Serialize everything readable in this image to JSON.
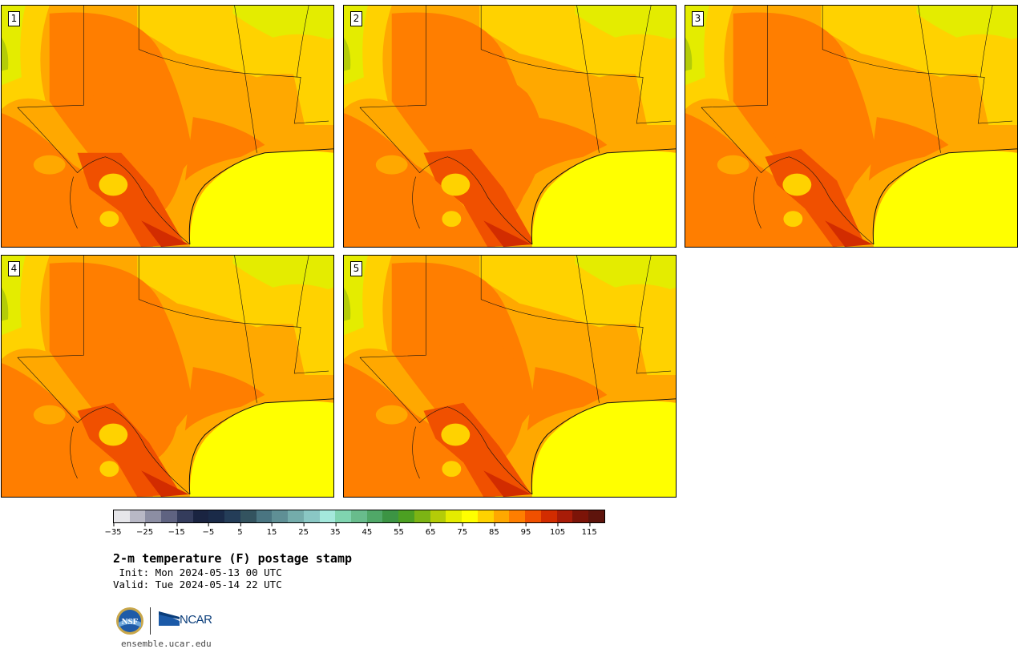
{
  "panels": [
    {
      "label": "1"
    },
    {
      "label": "2"
    },
    {
      "label": "3"
    },
    {
      "label": "4"
    },
    {
      "label": "5"
    }
  ],
  "colorbar": {
    "ticks": [
      "−35",
      "−25",
      "−15",
      "−5",
      "5",
      "15",
      "25",
      "35",
      "45",
      "55",
      "65",
      "75",
      "85",
      "95",
      "105",
      "115"
    ],
    "colors": [
      "#e6e6ea",
      "#b8b8c5",
      "#8c8ea3",
      "#5f6381",
      "#343c5c",
      "#1a2441",
      "#1a2a48",
      "#243d58",
      "#33535f",
      "#4a7581",
      "#5f8f95",
      "#74acab",
      "#8ac7c4",
      "#a4e8dc",
      "#80d4b0",
      "#68bc8c",
      "#50a868",
      "#3c9444",
      "#4ca022",
      "#7cb414",
      "#b4cc08",
      "#e4ec00",
      "#ffff00",
      "#ffd200",
      "#ffa800",
      "#ff7e00",
      "#f05000",
      "#d22c00",
      "#a81c08",
      "#7c1408",
      "#5e140c"
    ]
  },
  "title": "2-m temperature (F) postage stamp",
  "init": " Init: Mon 2024-05-13 00 UTC",
  "valid": "Valid: Tue 2024-05-14 22 UTC",
  "logos": {
    "nsf": "NSF",
    "ncar": "NCAR"
  },
  "url": "ensemble.ucar.edu"
}
